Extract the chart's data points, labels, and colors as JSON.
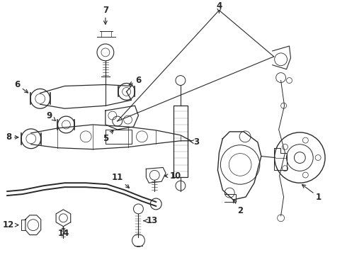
{
  "bg_color": "#ffffff",
  "line_color": "#2a2a2a",
  "figsize": [
    4.9,
    3.6
  ],
  "dpi": 100,
  "label_fontsize": 8.5,
  "label_fontweight": "bold"
}
